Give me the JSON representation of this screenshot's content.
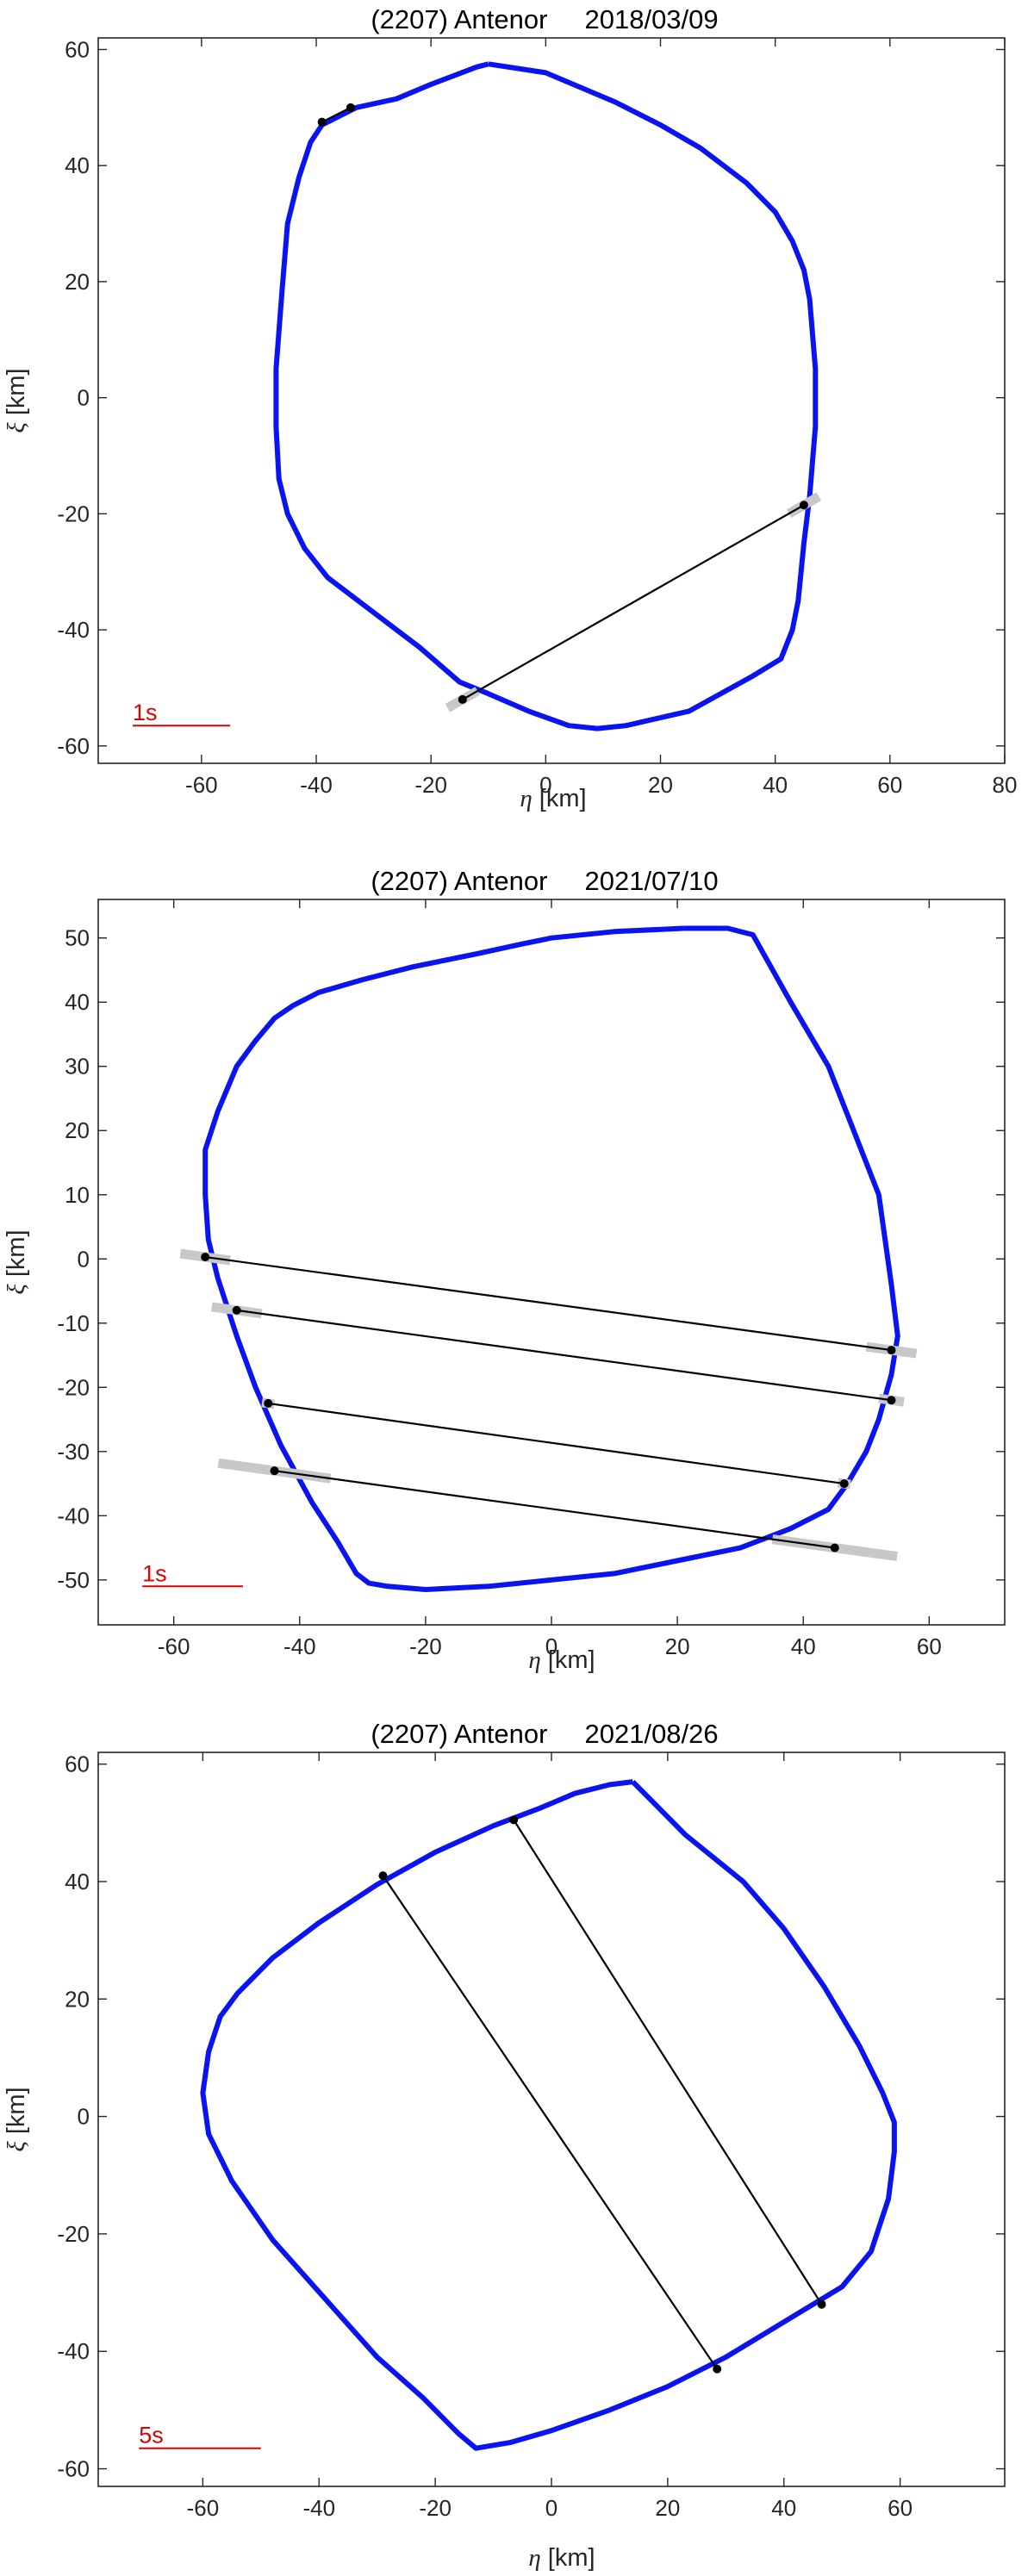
{
  "chart_data": [
    {
      "type": "scatter",
      "title": "(2207) Antenor     2018/03/09",
      "xlabel_symbol": "η",
      "xlabel_unit": "[km]",
      "ylabel_symbol": "ξ",
      "ylabel_unit": "[km]",
      "xlim": [
        -78,
        80
      ],
      "ylim": [
        -63,
        62
      ],
      "xticks": [
        -60,
        -40,
        -20,
        0,
        20,
        40,
        60,
        80
      ],
      "yticks": [
        -60,
        -40,
        -20,
        0,
        20,
        40,
        60
      ],
      "scale_label": "1s",
      "scale_bar": [
        -72,
        -55,
        -56.5
      ],
      "outline": [
        [
          -10,
          57.5
        ],
        [
          -12,
          57
        ],
        [
          -20,
          54
        ],
        [
          -26,
          51.5
        ],
        [
          -33,
          50
        ],
        [
          -39,
          47
        ],
        [
          -41,
          44
        ],
        [
          -43,
          38
        ],
        [
          -45,
          30
        ],
        [
          -46,
          18
        ],
        [
          -47,
          5
        ],
        [
          -47,
          -5
        ],
        [
          -46.5,
          -14
        ],
        [
          -45,
          -20
        ],
        [
          -42,
          -26
        ],
        [
          -38,
          -31
        ],
        [
          -30,
          -37
        ],
        [
          -22,
          -43
        ],
        [
          -15,
          -49
        ],
        [
          -10,
          -51
        ],
        [
          -3,
          -54
        ],
        [
          4,
          -56.5
        ],
        [
          9,
          -57
        ],
        [
          14,
          -56.5
        ],
        [
          25,
          -54
        ],
        [
          36,
          -48
        ],
        [
          41,
          -45
        ],
        [
          43,
          -40
        ],
        [
          44,
          -35
        ],
        [
          45,
          -25
        ],
        [
          46,
          -17
        ],
        [
          47,
          -5
        ],
        [
          47,
          5
        ],
        [
          46,
          17
        ],
        [
          45,
          22
        ],
        [
          43,
          27
        ],
        [
          40,
          32
        ],
        [
          35,
          37
        ],
        [
          27,
          43
        ],
        [
          20,
          47
        ],
        [
          12,
          51
        ],
        [
          0,
          56
        ],
        [
          -10,
          57.5
        ]
      ],
      "chords": [
        {
          "start": [
            -14.5,
            -52
          ],
          "end": [
            45,
            -18.5
          ],
          "start_unc": 3,
          "end_unc": 3
        },
        {
          "start": [
            -39,
            47.5
          ],
          "end": [
            -34,
            50
          ],
          "start_unc": 0,
          "end_unc": 0
        }
      ]
    },
    {
      "type": "scatter",
      "title": "(2207) Antenor     2021/07/10",
      "xlabel_symbol": "η",
      "xlabel_unit": "[km]",
      "ylabel_symbol": "ξ",
      "ylabel_unit": "[km]",
      "xlim": [
        -72,
        72
      ],
      "ylim": [
        -57,
        56
      ],
      "xticks": [
        -60,
        -40,
        -20,
        0,
        20,
        40,
        60
      ],
      "yticks": [
        -50,
        -40,
        -30,
        -20,
        -10,
        0,
        10,
        20,
        30,
        40,
        50
      ],
      "scale_label": "1s",
      "scale_bar": [
        -65,
        -49,
        -51
      ],
      "outline": [
        [
          21,
          51.5
        ],
        [
          10,
          51
        ],
        [
          0,
          50
        ],
        [
          -5,
          49
        ],
        [
          -12,
          47.5
        ],
        [
          -22,
          45.5
        ],
        [
          -30,
          43.5
        ],
        [
          -37,
          41.5
        ],
        [
          -41,
          39.5
        ],
        [
          -44,
          37.5
        ],
        [
          -47,
          34
        ],
        [
          -50,
          30
        ],
        [
          -53,
          23
        ],
        [
          -55,
          17
        ],
        [
          -55,
          10
        ],
        [
          -54.5,
          3
        ],
        [
          -53,
          -3
        ],
        [
          -50,
          -12
        ],
        [
          -47,
          -20
        ],
        [
          -43,
          -29
        ],
        [
          -38,
          -38
        ],
        [
          -34,
          -44
        ],
        [
          -31,
          -49
        ],
        [
          -29,
          -50.5
        ],
        [
          -26,
          -51
        ],
        [
          -20,
          -51.5
        ],
        [
          -10,
          -51
        ],
        [
          0,
          -50
        ],
        [
          10,
          -49
        ],
        [
          20,
          -47
        ],
        [
          30,
          -45
        ],
        [
          38,
          -42
        ],
        [
          44,
          -39
        ],
        [
          47,
          -35
        ],
        [
          50,
          -30
        ],
        [
          52,
          -25
        ],
        [
          54,
          -18
        ],
        [
          55,
          -12
        ],
        [
          54,
          -4
        ],
        [
          52,
          10
        ],
        [
          48,
          20
        ],
        [
          44,
          30
        ],
        [
          38,
          40
        ],
        [
          34,
          47
        ],
        [
          32,
          50.5
        ],
        [
          28,
          51.5
        ],
        [
          21,
          51.5
        ]
      ],
      "chords": [
        {
          "start": [
            -55,
            0.3
          ],
          "end": [
            54,
            -14.2
          ],
          "start_unc": 4,
          "end_unc": 4
        },
        {
          "start": [
            -50,
            -8
          ],
          "end": [
            54,
            -22
          ],
          "start_unc": 4,
          "end_unc": 2
        },
        {
          "start": [
            -45,
            -22.5
          ],
          "end": [
            46.5,
            -35
          ],
          "start_unc": 1,
          "end_unc": 1
        },
        {
          "start": [
            -44,
            -33
          ],
          "end": [
            45,
            -45
          ],
          "start_unc": 9,
          "end_unc": 10
        }
      ]
    },
    {
      "type": "scatter",
      "title": "(2207) Antenor     2021/08/26",
      "xlabel_symbol": "η",
      "xlabel_unit": "[km]",
      "ylabel_symbol": "ξ",
      "ylabel_unit": "[km]",
      "xlim": [
        -78,
        78
      ],
      "ylim": [
        -63,
        62
      ],
      "xticks": [
        -60,
        -40,
        -20,
        0,
        20,
        40,
        60
      ],
      "yticks": [
        -60,
        -40,
        -20,
        0,
        20,
        40,
        60
      ],
      "scale_label": "5s",
      "scale_bar": [
        -71,
        -50,
        -56.5
      ],
      "outline": [
        [
          14,
          57
        ],
        [
          10,
          56.5
        ],
        [
          4,
          55
        ],
        [
          -2,
          52.5
        ],
        [
          -10,
          49.5
        ],
        [
          -20,
          45
        ],
        [
          -30,
          39.5
        ],
        [
          -40,
          33
        ],
        [
          -48,
          27
        ],
        [
          -54,
          21
        ],
        [
          -57,
          17
        ],
        [
          -59,
          11
        ],
        [
          -60,
          4
        ],
        [
          -59,
          -3
        ],
        [
          -55,
          -11
        ],
        [
          -48,
          -21
        ],
        [
          -39,
          -31
        ],
        [
          -30,
          -41
        ],
        [
          -22,
          -48
        ],
        [
          -16,
          -54
        ],
        [
          -13,
          -56.5
        ],
        [
          -7,
          -55.5
        ],
        [
          0,
          -53.5
        ],
        [
          10,
          -50
        ],
        [
          20,
          -46
        ],
        [
          30,
          -41
        ],
        [
          40,
          -35
        ],
        [
          50,
          -29
        ],
        [
          55,
          -23
        ],
        [
          58,
          -14
        ],
        [
          59,
          -6
        ],
        [
          59,
          -1
        ],
        [
          57,
          4
        ],
        [
          53,
          12
        ],
        [
          47,
          22
        ],
        [
          40,
          32
        ],
        [
          33,
          40
        ],
        [
          23,
          48
        ],
        [
          18,
          53
        ],
        [
          14,
          57
        ]
      ],
      "chords": [
        {
          "start": [
            -29,
            41
          ],
          "end": [
            28.5,
            -43
          ],
          "start_unc": 0,
          "end_unc": 0
        },
        {
          "start": [
            -6.5,
            50.5
          ],
          "end": [
            46.5,
            -32
          ],
          "start_unc": 0,
          "end_unc": 0
        }
      ]
    }
  ],
  "colors": {
    "outline": "#0a14f0",
    "chord": "#000000",
    "uncertainty": "#c8c8c8",
    "scale": "#e00000"
  }
}
